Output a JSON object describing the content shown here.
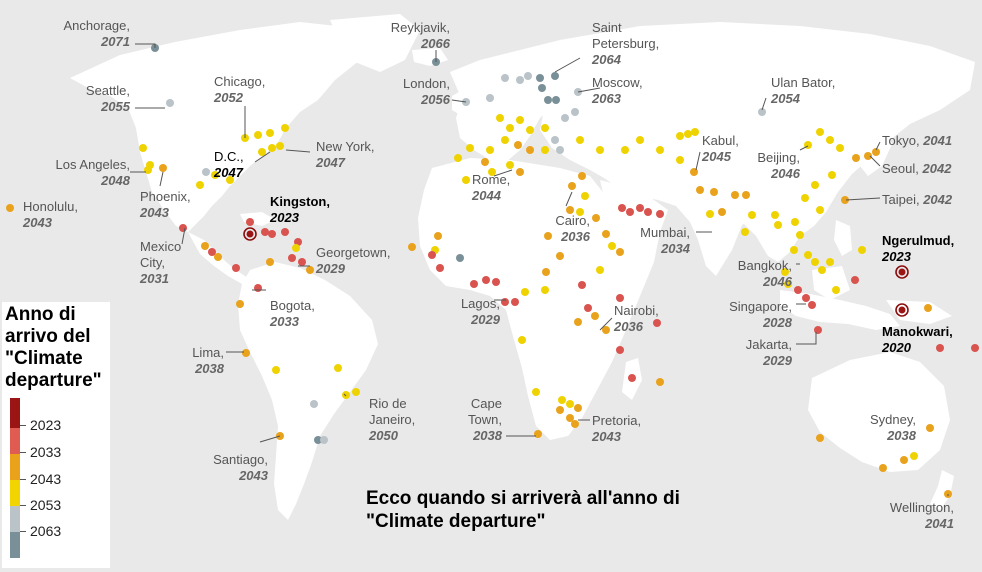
{
  "caption": "Ecco quando si arriverà all'anno di \"Climate departure\"",
  "legend": {
    "title": "Anno di arrivo del \"Climate departure\"",
    "items": [
      {
        "label": "2023",
        "color": "#b01c1c"
      },
      {
        "label": "2033",
        "color": "#e05c52"
      },
      {
        "label": "2043",
        "color": "#eaa21a"
      },
      {
        "label": "2053",
        "color": "#f1d400"
      },
      {
        "label": "2063",
        "color": "#b9c3c8"
      }
    ],
    "end_color": "#7a9098"
  },
  "cities": [
    {
      "name": "Anchorage,",
      "year": "2071"
    },
    {
      "name": "Seattle,",
      "year": "2055"
    },
    {
      "name": "Chicago,",
      "year": "2052"
    },
    {
      "name": "New York,",
      "year": "2047"
    },
    {
      "name": "D.C.,",
      "year": "2047"
    },
    {
      "name": "Los Angeles,",
      "year": "2048"
    },
    {
      "name": "Phoenix,",
      "year": "2043"
    },
    {
      "name": "Honolulu,",
      "year": "2043"
    },
    {
      "name": "Kingston,",
      "year": "2023"
    },
    {
      "name": "Mexico City,",
      "year": "2031"
    },
    {
      "name": "Georgetown,",
      "year": "2029"
    },
    {
      "name": "Bogota,",
      "year": "2033"
    },
    {
      "name": "Lima,",
      "year": "2038"
    },
    {
      "name": "Rio de Janeiro,",
      "year": "2050"
    },
    {
      "name": "Santiago,",
      "year": "2043"
    },
    {
      "name": "Reykjavik,",
      "year": "2066"
    },
    {
      "name": "Saint Petersburg,",
      "year": "2064"
    },
    {
      "name": "London,",
      "year": "2056"
    },
    {
      "name": "Moscow,",
      "year": "2063"
    },
    {
      "name": "Rome,",
      "year": "2044"
    },
    {
      "name": "Cairo,",
      "year": "2036"
    },
    {
      "name": "Lagos,",
      "year": "2029"
    },
    {
      "name": "Nairobi,",
      "year": "2036"
    },
    {
      "name": "Cape Town,",
      "year": "2038"
    },
    {
      "name": "Pretoria,",
      "year": "2043"
    },
    {
      "name": "Ulan Bator,",
      "year": "2054"
    },
    {
      "name": "Kabul,",
      "year": "2045"
    },
    {
      "name": "Mumbai,",
      "year": "2034"
    },
    {
      "name": "Beijing,",
      "year": "2046"
    },
    {
      "name": "Tokyo,",
      "year": "2041"
    },
    {
      "name": "Seoul,",
      "year": "2042"
    },
    {
      "name": "Taipei,",
      "year": "2042"
    },
    {
      "name": "Bangkok,",
      "year": "2046"
    },
    {
      "name": "Singapore,",
      "year": "2028"
    },
    {
      "name": "Jakarta,",
      "year": "2029"
    },
    {
      "name": "Ngerulmud,",
      "year": "2023"
    },
    {
      "name": "Manokwari,",
      "year": "2020"
    },
    {
      "name": "Sydney,",
      "year": "2038"
    },
    {
      "name": "Wellington,",
      "year": "2041"
    }
  ]
}
